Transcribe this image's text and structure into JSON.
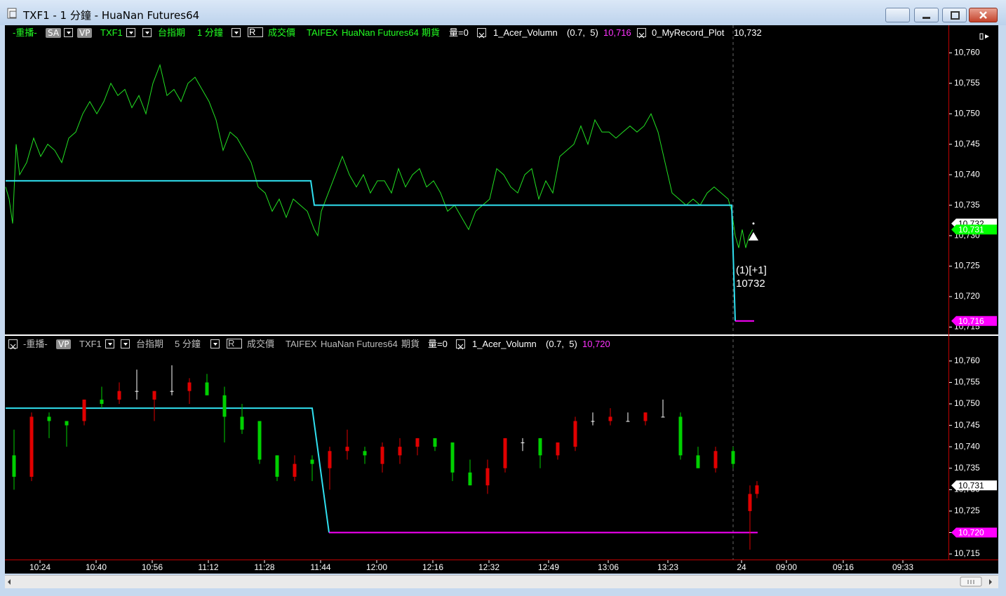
{
  "window": {
    "title": "TXF1 - 1 分鐘 - HuaNan Futures64"
  },
  "chart_data": [
    {
      "type": "line",
      "header": [
        "-重播-",
        "SA",
        "VP",
        "TXF1",
        "台指期",
        "1 分鐘",
        "R",
        "成交價",
        "TAIFEX",
        "HuaNan Futures64",
        "期貨",
        "量=0",
        "1_Acer_Volumn",
        "(0.7,  5)",
        "10,716",
        "0_MyRecord_Plot",
        "10,732"
      ],
      "xlim": [
        0,
        269
      ],
      "ylim": [
        10713.9,
        10764.3
      ],
      "yticks": [
        {
          "value": 10760,
          "label": "10,760"
        },
        {
          "value": 10755,
          "label": "10,755"
        },
        {
          "value": 10750,
          "label": "10,750"
        },
        {
          "value": 10745,
          "label": "10,745"
        },
        {
          "value": 10740,
          "label": "10,740"
        },
        {
          "value": 10735,
          "label": "10,735"
        },
        {
          "value": 10730,
          "label": "10,730"
        },
        {
          "value": 10725,
          "label": "10,725"
        },
        {
          "value": 10720,
          "label": "10,720"
        },
        {
          "value": 10715,
          "label": "10,715"
        }
      ],
      "series": [
        {
          "color": "#22e022",
          "width": 1,
          "x": [
            0,
            1,
            2,
            3,
            4,
            6,
            8,
            10,
            12,
            14,
            16,
            18,
            20,
            22,
            24,
            26,
            28,
            30,
            32,
            34,
            36,
            38,
            40,
            42,
            44,
            46,
            48,
            50,
            52,
            54,
            56,
            58,
            60,
            62,
            64,
            66,
            68,
            70,
            72,
            74,
            76,
            78,
            80,
            82,
            84,
            86,
            88,
            89,
            90,
            92,
            94,
            96,
            98,
            100,
            102,
            104,
            106,
            108,
            110,
            112,
            114,
            116,
            118,
            120,
            122,
            124,
            126,
            128,
            130,
            132,
            134,
            136,
            138,
            140,
            142,
            144,
            146,
            148,
            150,
            152,
            154,
            156,
            158,
            160,
            162,
            164,
            166,
            168,
            170,
            172,
            174,
            176,
            178,
            180,
            182,
            184,
            186,
            188,
            190,
            192,
            194,
            196,
            198,
            200,
            202,
            204,
            206,
            207,
            208,
            209,
            210,
            211,
            212,
            213
          ],
          "values": [
            10738,
            10736,
            10732,
            10745,
            10740,
            10742,
            10746,
            10743,
            10745,
            10744,
            10742,
            10746,
            10747,
            10750,
            10752,
            10750,
            10752,
            10755,
            10753,
            10754,
            10751,
            10753,
            10750,
            10755,
            10758,
            10753,
            10754,
            10752,
            10755,
            10756,
            10754,
            10752,
            10749,
            10744,
            10747,
            10746,
            10744,
            10742,
            10738,
            10737,
            10734,
            10736,
            10733,
            10736,
            10735,
            10734,
            10731,
            10730,
            10734,
            10737,
            10740,
            10743,
            10740,
            10738,
            10740,
            10737,
            10739,
            10739,
            10737,
            10741,
            10738,
            10740,
            10741,
            10738,
            10739,
            10737,
            10734,
            10735,
            10733,
            10731,
            10734,
            10735,
            10736,
            10741,
            10740,
            10738,
            10737,
            10740,
            10741,
            10736,
            10739,
            10737,
            10743,
            10744,
            10745,
            10748,
            10745,
            10749,
            10747,
            10747,
            10746,
            10747,
            10748,
            10747,
            10748,
            10750,
            10747,
            10742,
            10737,
            10736,
            10735,
            10736,
            10735,
            10737,
            10738,
            10737,
            10736,
            10734,
            10730,
            10728,
            10731,
            10728,
            10730,
            10731
          ]
        },
        {
          "color": "#30e0f0",
          "width": 2,
          "x": [
            0,
            87,
            88,
            207,
            208
          ],
          "values": [
            10739,
            10739,
            10735,
            10735,
            10716
          ]
        },
        {
          "color": "#ff00ff",
          "width": 2,
          "x": [
            208,
            213.4
          ],
          "values": [
            10716,
            10716
          ]
        }
      ],
      "price_tags": [
        {
          "value": 10732,
          "label": "10,732",
          "color": "#ffffff",
          "text_color": "#000000"
        },
        {
          "value": 10731,
          "label": "10,731",
          "color": "#00ff00",
          "text_color": "#ffffff"
        },
        {
          "value": 10716,
          "label": "10,716",
          "color": "#ff00ff",
          "text_color": "#ffffff"
        }
      ],
      "annotation": {
        "x": 213.2,
        "y": 10729.9,
        "text": "(1)[+1]",
        "price": 10732
      }
    },
    {
      "type": "candlestick",
      "header": [
        "-重播-",
        "VP",
        "TXF1",
        "台指期",
        "5 分鐘",
        "R",
        "成交價",
        "TAIFEX",
        "HuaNan Futures64",
        "期貨",
        "量=0",
        "1_Acer_Volumn",
        "(0.7,  5)",
        "10,720"
      ],
      "xlim": [
        0,
        269
      ],
      "ylim": [
        10713.7,
        10765.7
      ],
      "yticks": [
        {
          "value": 10760,
          "label": "10,760"
        },
        {
          "value": 10755,
          "label": "10,755"
        },
        {
          "value": 10750,
          "label": "10,750"
        },
        {
          "value": 10745,
          "label": "10,745"
        },
        {
          "value": 10740,
          "label": "10,740"
        },
        {
          "value": 10735,
          "label": "10,735"
        },
        {
          "value": 10730,
          "label": "10,730"
        },
        {
          "value": 10725,
          "label": "10,725"
        },
        {
          "value": 10720,
          "label": "10,720"
        },
        {
          "value": 10715,
          "label": "10,715"
        }
      ],
      "xticks": [
        {
          "value": 9.8,
          "label": "10:24"
        },
        {
          "value": 25.8,
          "label": "10:40"
        },
        {
          "value": 41.8,
          "label": "10:56"
        },
        {
          "value": 57.8,
          "label": "11:12"
        },
        {
          "value": 73.8,
          "label": "11:28"
        },
        {
          "value": 89.8,
          "label": "11:44"
        },
        {
          "value": 105.8,
          "label": "12:00"
        },
        {
          "value": 121.8,
          "label": "12:16"
        },
        {
          "value": 137.8,
          "label": "12:32"
        },
        {
          "value": 154.8,
          "label": "12:49"
        },
        {
          "value": 171.8,
          "label": "13:06"
        },
        {
          "value": 188.8,
          "label": "13:23"
        },
        {
          "value": 209.8,
          "label": "24"
        },
        {
          "value": 222.6,
          "label": "09:00"
        },
        {
          "value": 238.8,
          "label": "09:16"
        },
        {
          "value": 255.8,
          "label": "09:33"
        }
      ],
      "up_color": "#e00000",
      "down_color": "#00d000",
      "flat_color": "#ffffff",
      "x": [
        2.4,
        7.4,
        12.4,
        17.4,
        22.4,
        27.4,
        32.4,
        37.4,
        42.4,
        47.4,
        52.4,
        57.4,
        62.4,
        67.4,
        72.4,
        77.4,
        82.4,
        87.4,
        92.4,
        97.4,
        102.4,
        107.4,
        112.4,
        117.4,
        122.4,
        127.4,
        132.4,
        137.4,
        142.4,
        147.4,
        152.4,
        157.4,
        162.4,
        167.4,
        172.4,
        177.4,
        182.4,
        187.4,
        192.4,
        197.4,
        202.4,
        207.4,
        212.2,
        214.2
      ],
      "open": [
        10738,
        10733,
        10747,
        10746,
        10746,
        10751,
        10751,
        10753,
        10751,
        10753,
        10753,
        10755,
        10752,
        10747,
        10746,
        10738,
        10733,
        10737,
        10735,
        10739,
        10739,
        10736,
        10738,
        10740,
        10742,
        10741,
        10734,
        10731,
        10735,
        10741,
        10742,
        10738,
        10740,
        10746,
        10746,
        10746,
        10746,
        10747,
        10747,
        10738,
        10735,
        10739,
        10725,
        10729
      ],
      "high": [
        10744,
        10748,
        10748,
        10746,
        10751,
        10754,
        10755,
        10758,
        10753,
        10759,
        10756,
        10757,
        10754,
        10750,
        10746,
        10738,
        10738,
        10738,
        10740,
        10744,
        10740,
        10741,
        10742,
        10742,
        10742,
        10741,
        10737,
        10737,
        10742,
        10742,
        10742,
        10741,
        10747,
        10748,
        10749,
        10748,
        10748,
        10751,
        10748,
        10740,
        10740,
        10740,
        10731,
        10732
      ],
      "low": [
        10730,
        10732,
        10742,
        10740,
        10745,
        10749,
        10750,
        10751,
        10746,
        10752,
        10750,
        10752,
        10741,
        10743,
        10736,
        10732,
        10732,
        10732,
        10730,
        10737,
        10736,
        10734,
        10736,
        10738,
        10739,
        10732,
        10731,
        10729,
        10734,
        10739,
        10735,
        10737,
        10739,
        10745,
        10745,
        10746,
        10745,
        10747,
        10737,
        10735,
        10734,
        10735,
        10716,
        10728
      ],
      "close": [
        10733,
        10747,
        10746,
        10745,
        10751,
        10750,
        10753,
        10753,
        10753,
        10753,
        10755,
        10752,
        10747,
        10744,
        10737,
        10733,
        10736,
        10736,
        10739,
        10740,
        10738,
        10740,
        10740,
        10742,
        10740,
        10734,
        10731,
        10735,
        10742,
        10741,
        10738,
        10741,
        10746,
        10746,
        10747,
        10746,
        10748,
        10747,
        10738,
        10735,
        10739,
        10736,
        10729,
        10731
      ],
      "series": [
        {
          "color": "#30e0f0",
          "width": 2,
          "x": [
            0,
            87.4,
            92.2
          ],
          "values": [
            10749,
            10749,
            10720
          ]
        },
        {
          "color": "#ff00ff",
          "width": 2,
          "x": [
            92.2,
            214.4
          ],
          "values": [
            10720,
            10720
          ]
        }
      ],
      "price_tags": [
        {
          "value": 10731,
          "label": "10,731",
          "color": "#ffffff",
          "text_color": "#000000"
        },
        {
          "value": 10720,
          "label": "10,720",
          "color": "#ff00ff",
          "text_color": "#ffffff"
        }
      ]
    }
  ]
}
